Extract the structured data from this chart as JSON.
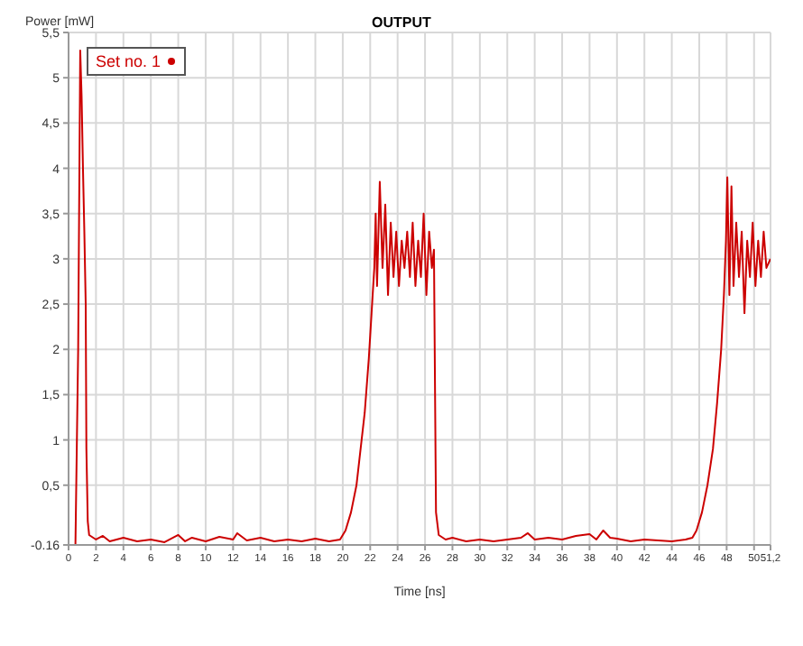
{
  "chart_data": {
    "type": "line",
    "title": "OUTPUT",
    "xlabel": "Time [ns]",
    "ylabel": "Power [mW]",
    "x": [
      0,
      0.5,
      0.7,
      0.85,
      0.95,
      1.05,
      1.15,
      1.25,
      1.3,
      1.4,
      1.5,
      2,
      2.5,
      3,
      4,
      5,
      6,
      7,
      8,
      8.5,
      9,
      10,
      11,
      12,
      12.3,
      13,
      14,
      15,
      16,
      17,
      18,
      19,
      19.8,
      20.2,
      20.6,
      21,
      21.3,
      21.6,
      21.9,
      22.1,
      22.3,
      22.4,
      22.5,
      22.7,
      22.9,
      23.1,
      23.3,
      23.5,
      23.7,
      23.9,
      24.1,
      24.3,
      24.5,
      24.7,
      24.9,
      25.1,
      25.3,
      25.5,
      25.7,
      25.9,
      26.1,
      26.3,
      26.5,
      26.65,
      26.8,
      27,
      27.5,
      28,
      29,
      30,
      31,
      32,
      33,
      33.5,
      34,
      35,
      36,
      37,
      38,
      38.5,
      39,
      39.5,
      40,
      41,
      42,
      43,
      44,
      45,
      45.5,
      45.8,
      46.2,
      46.6,
      47,
      47.3,
      47.6,
      47.8,
      47.95,
      48.05,
      48.2,
      48.35,
      48.5,
      48.7,
      48.9,
      49.1,
      49.3,
      49.5,
      49.7,
      49.9,
      50.1,
      50.3,
      50.5,
      50.7,
      50.9,
      51.2
    ],
    "series": [
      {
        "name": "Set no. 1",
        "color": "#cc0000",
        "values": [
          -0.16,
          -0.16,
          2.0,
          5.3,
          4.8,
          4.0,
          3.3,
          2.5,
          0.9,
          0.1,
          -0.05,
          -0.1,
          -0.06,
          -0.12,
          -0.08,
          -0.12,
          -0.1,
          -0.13,
          -0.05,
          -0.12,
          -0.08,
          -0.12,
          -0.07,
          -0.1,
          -0.03,
          -0.11,
          -0.08,
          -0.12,
          -0.1,
          -0.12,
          -0.09,
          -0.12,
          -0.1,
          0.0,
          0.2,
          0.5,
          0.9,
          1.3,
          1.9,
          2.4,
          2.9,
          3.5,
          2.7,
          3.85,
          2.9,
          3.6,
          2.6,
          3.4,
          2.8,
          3.3,
          2.7,
          3.2,
          2.9,
          3.3,
          2.8,
          3.4,
          2.7,
          3.2,
          2.8,
          3.5,
          2.6,
          3.3,
          2.9,
          3.1,
          0.2,
          -0.05,
          -0.1,
          -0.08,
          -0.12,
          -0.1,
          -0.12,
          -0.1,
          -0.08,
          -0.03,
          -0.1,
          -0.08,
          -0.1,
          -0.06,
          -0.04,
          -0.1,
          0.0,
          -0.08,
          -0.09,
          -0.12,
          -0.1,
          -0.11,
          -0.12,
          -0.1,
          -0.08,
          0.0,
          0.2,
          0.5,
          0.9,
          1.4,
          2.0,
          2.6,
          3.2,
          3.9,
          2.6,
          3.8,
          2.7,
          3.4,
          2.8,
          3.3,
          2.4,
          3.2,
          2.8,
          3.4,
          2.7,
          3.2,
          2.8,
          3.3,
          2.9,
          3.0
        ]
      }
    ],
    "xlim": [
      0,
      51.2
    ],
    "xticks": [
      0,
      2,
      4,
      6,
      8,
      10,
      12,
      14,
      16,
      18,
      20,
      22,
      24,
      26,
      28,
      30,
      32,
      34,
      36,
      38,
      40,
      42,
      44,
      46,
      48,
      50,
      {
        "value": 51.2,
        "label": "51,2"
      }
    ],
    "ylim": [
      -0.16,
      5.5
    ],
    "yticks": [
      -0.16,
      {
        "value": 0.5,
        "label": "0,5"
      },
      1,
      {
        "value": 1.5,
        "label": "1,5"
      },
      2,
      {
        "value": 2.5,
        "label": "2,5"
      },
      3,
      {
        "value": 3.5,
        "label": "3,5"
      },
      4,
      {
        "value": 4.5,
        "label": "4,5"
      },
      5,
      {
        "value": 5.5,
        "label": "5,5"
      }
    ],
    "grid": true,
    "legend": "top left"
  }
}
